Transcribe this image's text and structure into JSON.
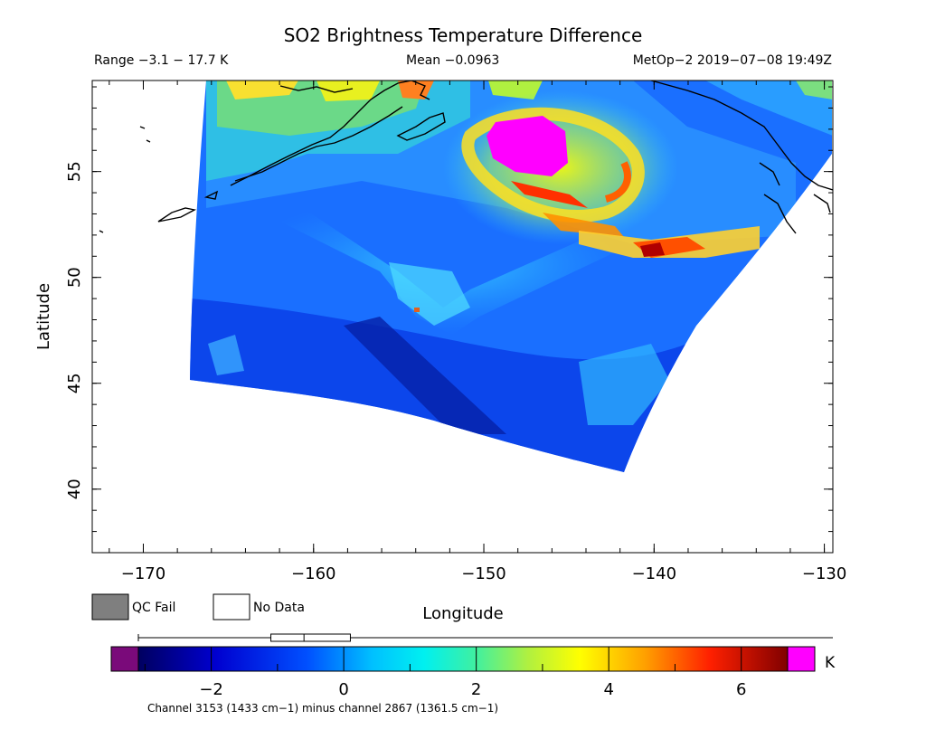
{
  "title": "SO2 Brightness Temperature Difference",
  "info": {
    "range": "Range −3.1 − 17.7 K",
    "mean": "Mean −0.0963",
    "satellite_time": "MetOp−2 2019−07−08 19:49Z"
  },
  "axes": {
    "x_label": "Longitude",
    "y_label": "Latitude",
    "x_ticks": [
      "−170",
      "−160",
      "−150",
      "−140",
      "−130"
    ],
    "x_tick_values": [
      -170,
      -160,
      -150,
      -140,
      -130
    ],
    "y_ticks": [
      "40",
      "45",
      "50",
      "55"
    ],
    "y_tick_values": [
      40,
      45,
      50,
      55
    ],
    "lon_range": [
      -173,
      -129.5
    ],
    "lat_range": [
      37,
      59.3
    ]
  },
  "legend": {
    "qc_fail": "QC Fail",
    "no_data": "No Data"
  },
  "colorbar": {
    "unit": "K",
    "ticks": [
      "−2",
      "0",
      "2",
      "4",
      "6"
    ],
    "tick_values": [
      -2,
      0,
      2,
      4,
      6
    ],
    "range": [
      -3.1,
      6.7
    ],
    "footnote": "Channel 3153 (1433 cm−1) minus channel 2867 (1361.5 cm−1)",
    "box": {
      "min": -1.1,
      "median": -0.6,
      "max": 0.1
    },
    "under_color": "#7a0a7a",
    "over_color": "#ff00ff",
    "qc_fail_color": "#7f7f7f"
  },
  "plume": {
    "core_lon": -147.5,
    "core_lat": 56.3,
    "core_color": "#ff00ff"
  }
}
